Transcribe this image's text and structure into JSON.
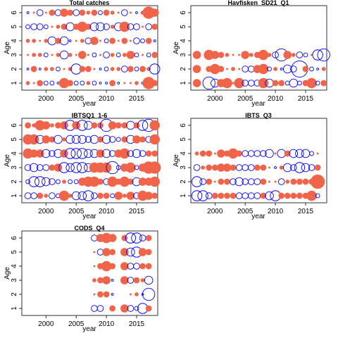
{
  "colors": {
    "positive": "#F06449",
    "negative": "#0000FF"
  },
  "chart_data": [
    {
      "type": "scatter",
      "title": "Total catches",
      "xlabel": "year",
      "ylabel": "Age",
      "xlim": [
        1996,
        2018.5
      ],
      "ylim": [
        0.5,
        6.5
      ],
      "xticks": [
        2000,
        2005,
        2010,
        2015
      ],
      "yticks": [
        1,
        2,
        3,
        4,
        5,
        6
      ],
      "years": [
        1997,
        1998,
        1999,
        2000,
        2001,
        2002,
        2003,
        2004,
        2005,
        2006,
        2007,
        2008,
        2009,
        2010,
        2011,
        2012,
        2013,
        2014,
        2015,
        2016,
        2017,
        2018
      ],
      "residuals": {
        "1": [
          2,
          1,
          3,
          -2,
          -2,
          -1,
          5,
          3,
          -2,
          -2,
          2,
          -2,
          -1,
          -1,
          3,
          -1,
          1,
          1,
          2,
          -1,
          6,
          3
        ],
        "2": [
          -1,
          3,
          -1,
          2,
          2,
          -2,
          1,
          2,
          -5,
          3,
          3,
          1,
          -1,
          -2,
          2,
          2,
          -3,
          3,
          -2,
          3,
          2,
          -5
        ],
        "3": [
          1,
          2,
          2,
          -2,
          1,
          2,
          -4,
          2,
          1,
          4,
          1,
          -2,
          1,
          -3,
          2,
          -2,
          2,
          4,
          -2,
          1,
          -2,
          3
        ],
        "4": [
          2,
          2,
          1,
          2,
          -4,
          3,
          -4,
          -1,
          1,
          2,
          -3,
          4,
          1,
          -2,
          3,
          1,
          3,
          1,
          -3,
          -2,
          3,
          -1
        ],
        "5": [
          -2,
          -3,
          -3,
          -2,
          1,
          2,
          3,
          -4,
          3,
          5,
          3,
          -4,
          -4,
          -3,
          2,
          -4,
          5,
          -3,
          -3,
          1,
          -3,
          3
        ],
        "6": [
          -1,
          1,
          -3,
          1,
          3,
          -3,
          4,
          3,
          -3,
          3,
          2,
          3,
          -2,
          3,
          2,
          1,
          -3,
          1,
          -1,
          2,
          6,
          4
        ]
      }
    },
    {
      "type": "scatter",
      "title": "Havfisken_SD21_Q1",
      "xlabel": "year",
      "ylabel": "Age",
      "xlim": [
        1996,
        2018.5
      ],
      "ylim": [
        0.5,
        6.5
      ],
      "xticks": [
        2000,
        2005,
        2010,
        2015
      ],
      "yticks": [
        1,
        2,
        3,
        4,
        5,
        6
      ],
      "years": [
        1997,
        1999,
        2000,
        2001,
        2002,
        2003,
        2004,
        2005,
        2006,
        2007,
        2008,
        2009,
        2010,
        2011,
        2012,
        2013,
        2014,
        2015,
        2016,
        2017,
        2018
      ],
      "residuals": {
        "1": [
          4,
          -6,
          -4,
          4,
          5,
          1,
          5,
          -3,
          -3,
          -3,
          5,
          -4,
          3,
          3,
          -2,
          -4,
          -2,
          3,
          5,
          -2,
          3
        ],
        "2": [
          4,
          3,
          5,
          3,
          1,
          2,
          1,
          -3,
          -3,
          4,
          5,
          -2,
          2,
          -1,
          -4,
          -3,
          -8,
          3,
          -2,
          -1,
          2
        ],
        "3": [
          4,
          5,
          4,
          3,
          2,
          1,
          1,
          4,
          2,
          3,
          5,
          2,
          -3,
          -6,
          4,
          2,
          -3,
          -2,
          1,
          -5,
          -6
        ]
      }
    },
    {
      "type": "scatter",
      "title": "IBTSQ1_1-6",
      "xlabel": "year",
      "ylabel": "Age",
      "xlim": [
        1996,
        2018.5
      ],
      "ylim": [
        0.5,
        6.5
      ],
      "xticks": [
        2000,
        2005,
        2010,
        2015
      ],
      "yticks": [
        1,
        2,
        3,
        4,
        5,
        6
      ],
      "years": [
        1997,
        1998,
        1999,
        2000,
        2001,
        2002,
        2003,
        2004,
        2005,
        2006,
        2007,
        2008,
        2009,
        2010,
        2011,
        2012,
        2013,
        2014,
        2015,
        2016,
        2017,
        2018
      ],
      "residuals": {
        "1": [
          -3,
          -3,
          3,
          2,
          -3,
          -2,
          5,
          2,
          -4,
          -4,
          -5,
          -3,
          3,
          3,
          -2,
          4,
          2,
          4,
          -3,
          5,
          4,
          3
        ],
        "2": [
          -2,
          -5,
          -5,
          -4,
          -3,
          -2,
          2,
          -2,
          -2,
          4,
          5,
          5,
          3,
          -3,
          5,
          3,
          5,
          3,
          -4,
          4,
          4,
          5
        ],
        "3": [
          -3,
          -4,
          -3,
          -3,
          3,
          4,
          -5,
          -4,
          -5,
          -5,
          -4,
          5,
          5,
          5,
          -6,
          -2,
          4,
          5,
          -2,
          4,
          6,
          6
        ],
        "4": [
          5,
          4,
          4,
          -4,
          -3,
          -4,
          4,
          -5,
          -5,
          -5,
          -4,
          -4,
          4,
          -4,
          -3,
          4,
          5,
          -3,
          -4,
          -3,
          3,
          3
        ],
        "5": [
          5,
          5,
          -4,
          4,
          3,
          -4,
          2,
          -4,
          -4,
          -4,
          -3,
          -4,
          3,
          -4,
          -3,
          -2,
          3,
          -4,
          4,
          3,
          -3,
          5
        ],
        "6": [
          3,
          2,
          5,
          4,
          2,
          3,
          4,
          -5,
          4,
          -5,
          -4,
          3,
          3,
          -6,
          4,
          3,
          3,
          -4,
          3,
          -5,
          -6,
          5
        ]
      }
    },
    {
      "type": "scatter",
      "title": "IBTS_Q3",
      "xlabel": "year",
      "ylabel": "Age",
      "xlim": [
        1996,
        2018.5
      ],
      "ylim": [
        0.5,
        6.5
      ],
      "xticks": [
        2000,
        2005,
        2010,
        2015
      ],
      "yticks": [
        1,
        2,
        3,
        4,
        5,
        6
      ],
      "years": [
        1997,
        1998,
        1999,
        2000,
        2001,
        2002,
        2003,
        2004,
        2005,
        2006,
        2007,
        2008,
        2009,
        2010,
        2011,
        2012,
        2013,
        2014,
        2015,
        2016,
        2017
      ],
      "residuals": {
        "1": [
          -5,
          -5,
          -3,
          3,
          3,
          3,
          3,
          -3,
          -3,
          -3,
          -3,
          3,
          -4,
          -5,
          3,
          3,
          3,
          3,
          3,
          5,
          -2
        ],
        "2": [
          -5,
          -3,
          3,
          1,
          3,
          3,
          -3,
          -4,
          -3,
          -3,
          -3,
          3,
          1,
          1,
          -3,
          2,
          3,
          3,
          3,
          3,
          7
        ],
        "3": [
          -3,
          2,
          3,
          3,
          4,
          4,
          3,
          -3,
          -3,
          -3,
          3,
          3,
          1,
          -1,
          2,
          -4,
          -3,
          -5,
          -4,
          -3,
          3
        ],
        "4": [
          2,
          3,
          3,
          1,
          4,
          3,
          5,
          3,
          -3,
          -3,
          -3,
          -3,
          -4,
          1,
          -4,
          3,
          -4,
          -4,
          -4,
          -2,
          1
        ]
      }
    },
    {
      "type": "scatter",
      "title": "CODS_Q4",
      "xlabel": "year",
      "ylabel": "Age",
      "xlim": [
        1996,
        2018.5
      ],
      "ylim": [
        0.5,
        6.5
      ],
      "xticks": [
        2000,
        2005,
        2010,
        2015
      ],
      "yticks": [
        1,
        2,
        3,
        4,
        5,
        6
      ],
      "years": [
        2008,
        2009,
        2010,
        2011,
        2013,
        2014,
        2015,
        2016,
        2017
      ],
      "residuals": {
        "1": [
          -3,
          -3,
          0,
          3,
          4,
          -3,
          -2,
          -5,
          3
        ],
        "2": [
          1,
          3,
          3,
          -1,
          0,
          1,
          2,
          -1,
          -6
        ],
        "3": [
          2,
          3,
          4,
          -1,
          4,
          -3,
          3,
          2,
          -4
        ],
        "4": [
          1,
          3,
          5,
          3,
          4,
          -3,
          -3,
          3,
          3
        ],
        "5": [
          1,
          -3,
          4,
          3,
          4,
          -4,
          -5,
          4,
          3
        ],
        "6": [
          -3,
          4,
          5,
          4,
          3,
          -5,
          -5,
          -3,
          3
        ]
      }
    }
  ]
}
